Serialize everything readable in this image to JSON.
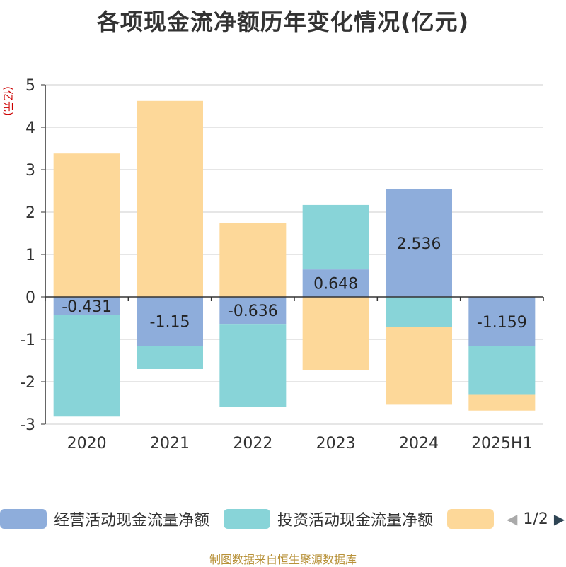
{
  "title": "各项现金流净额历年变化情况(亿元)",
  "unit_label": "(亿元)",
  "source_note": "制图数据来自恒生聚源数据库",
  "legend": {
    "items": [
      {
        "label": "经营活动现金流量净额",
        "color": "#8eaddb"
      },
      {
        "label": "投资活动现金流量净额",
        "color": "#88d4d8"
      },
      {
        "label": "",
        "color": "#fdd899"
      }
    ],
    "pager": {
      "text": "1/2",
      "prev_color": "#aaaaaa",
      "next_color": "#2f4554"
    }
  },
  "chart_data": {
    "type": "bar",
    "stacked": true,
    "categories": [
      "2020",
      "2021",
      "2022",
      "2023",
      "2024",
      "2025H1"
    ],
    "ylim": [
      -3,
      5
    ],
    "yticks": [
      -3,
      -2,
      -1,
      0,
      1,
      2,
      3,
      4,
      5
    ],
    "grid": true,
    "legend_position": "bottom",
    "series": [
      {
        "name": "经营活动现金流量净额",
        "color": "#8eaddb",
        "values": [
          -0.431,
          -1.15,
          -0.636,
          0.648,
          2.536,
          -1.159
        ],
        "labels": [
          "-0.431",
          "-1.15",
          "-0.636",
          "0.648",
          "2.536",
          "-1.159"
        ]
      },
      {
        "name": "投资活动现金流量净额",
        "color": "#88d4d8",
        "values": [
          -2.39,
          -0.55,
          -1.96,
          1.52,
          -0.7,
          -1.15
        ]
      },
      {
        "color": "#fdd899",
        "values": [
          3.38,
          4.62,
          1.74,
          -1.72,
          -1.84,
          -0.37
        ]
      }
    ]
  }
}
